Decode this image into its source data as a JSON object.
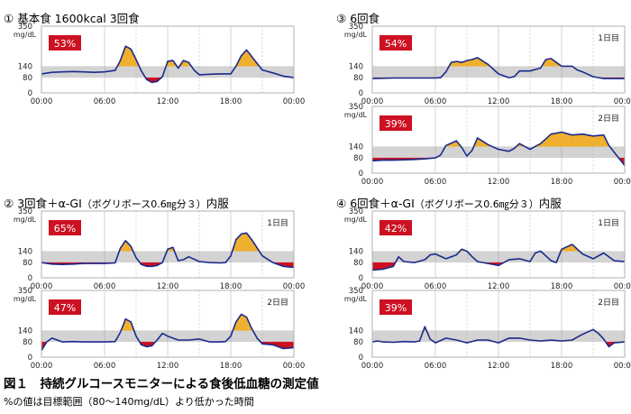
{
  "colors": {
    "line": "#1a2a8c",
    "high": "#f0b030",
    "low": "#cc1122",
    "band": "#d3d3d3",
    "badge": "#cc1122",
    "frame": "#b0b0b0",
    "vgrid": "#9a9a9a"
  },
  "sections": [
    {
      "number": "①",
      "title": "基本食 1600kcal 3回食",
      "drug": "",
      "suffix": ""
    },
    {
      "number": "③",
      "title": "6回食",
      "drug": "",
      "suffix": ""
    },
    {
      "number": "②",
      "title": "3回食＋α-GI",
      "drug": "（ボグリボース0.6㎎分３）",
      "suffix": "内服"
    },
    {
      "number": "④",
      "title": "6回食＋α-GI",
      "drug": "（ボグリボース0.6㎎分３）",
      "suffix": "内服"
    }
  ],
  "figure": {
    "title": "図１　持続グルコースモニターによる食後低血糖の測定値",
    "note": "%の値は目標範囲（80～140mg/dL）より低かった時間"
  },
  "axis": {
    "y_ticks": [
      "350",
      "140",
      "80",
      "0"
    ],
    "unit": "mg/dL",
    "x_ticks": [
      "00:00",
      "06:00",
      "12:00",
      "18:00",
      "00:00"
    ]
  },
  "chart_data": [
    {
      "type": "line",
      "section": 1,
      "day_label": "",
      "badge": "53%",
      "y_range": [
        0,
        350
      ],
      "target_range": [
        80,
        140
      ],
      "x_range_hours": [
        0,
        24
      ],
      "x": [
        0,
        1,
        2,
        3,
        4,
        5,
        6,
        7,
        7.5,
        8,
        8.5,
        9,
        9.5,
        10,
        10.5,
        11,
        11.5,
        12,
        12.5,
        13,
        13.5,
        14,
        14.5,
        15,
        16,
        17,
        18,
        18.5,
        19,
        19.5,
        20,
        21,
        22,
        23,
        24
      ],
      "y": [
        100,
        108,
        110,
        112,
        110,
        108,
        110,
        118,
        170,
        245,
        230,
        175,
        115,
        70,
        55,
        60,
        85,
        165,
        170,
        130,
        170,
        160,
        120,
        95,
        98,
        100,
        100,
        140,
        195,
        225,
        190,
        120,
        105,
        88,
        80
      ]
    },
    {
      "type": "line",
      "section": 3,
      "day_label": "1日目",
      "badge": "54%",
      "y_range": [
        0,
        350
      ],
      "target_range": [
        80,
        140
      ],
      "x_range_hours": [
        0,
        24
      ],
      "x": [
        0,
        2,
        4,
        6,
        6.5,
        7,
        7.5,
        8,
        8.5,
        9,
        9.5,
        10,
        11,
        12,
        12.5,
        13,
        13.5,
        14,
        15,
        16,
        16.5,
        17,
        17.5,
        18,
        19,
        19.5,
        20,
        21,
        22,
        23,
        24
      ],
      "y": [
        75,
        78,
        78,
        78,
        80,
        110,
        160,
        165,
        160,
        170,
        175,
        185,
        150,
        100,
        90,
        80,
        85,
        115,
        115,
        130,
        175,
        180,
        160,
        140,
        140,
        120,
        110,
        85,
        75,
        75,
        75
      ]
    },
    {
      "type": "line",
      "section": 3,
      "day_label": "2日目",
      "badge": "39%",
      "y_range": [
        0,
        350
      ],
      "target_range": [
        80,
        140
      ],
      "x_range_hours": [
        0,
        24
      ],
      "x": [
        0,
        1,
        2,
        3,
        4,
        5,
        6,
        6.5,
        7,
        8,
        8.5,
        9,
        9.5,
        10,
        11,
        12,
        13,
        13.5,
        14,
        15,
        16,
        17,
        18,
        19,
        20,
        21,
        22,
        22.5,
        23,
        24
      ],
      "y": [
        65,
        68,
        68,
        70,
        72,
        75,
        80,
        95,
        145,
        170,
        135,
        90,
        120,
        185,
        150,
        125,
        115,
        130,
        155,
        125,
        155,
        205,
        215,
        200,
        205,
        195,
        200,
        145,
        110,
        40
      ]
    },
    {
      "type": "line",
      "section": 2,
      "day_label": "1日目",
      "badge": "65%",
      "y_range": [
        0,
        350
      ],
      "target_range": [
        80,
        140
      ],
      "x_range_hours": [
        0,
        24
      ],
      "x": [
        0,
        1,
        2,
        3,
        4,
        5,
        6,
        7,
        7.5,
        8,
        8.5,
        9,
        9.5,
        10,
        10.5,
        11,
        11.5,
        12,
        12.5,
        13,
        13.5,
        14,
        15,
        16,
        17,
        17.5,
        18,
        18.5,
        19,
        19.5,
        20,
        21,
        22,
        23,
        24
      ],
      "y": [
        80,
        72,
        70,
        72,
        75,
        75,
        75,
        78,
        155,
        195,
        165,
        105,
        70,
        60,
        60,
        65,
        80,
        150,
        160,
        90,
        95,
        110,
        85,
        80,
        78,
        80,
        115,
        200,
        230,
        235,
        200,
        115,
        80,
        60,
        55
      ]
    },
    {
      "type": "line",
      "section": 2,
      "day_label": "2日目",
      "badge": "47%",
      "y_range": [
        0,
        350
      ],
      "target_range": [
        80,
        140
      ],
      "x_range_hours": [
        0,
        24
      ],
      "x": [
        0,
        0.5,
        1,
        2,
        3,
        4,
        5,
        6,
        7,
        7.5,
        8,
        8.5,
        9,
        9.5,
        10,
        10.5,
        11,
        11.5,
        12,
        13,
        14,
        15,
        16,
        17,
        17.5,
        18,
        18.5,
        19,
        19.5,
        20,
        20.5,
        21,
        22,
        23,
        24
      ],
      "y": [
        35,
        80,
        100,
        80,
        82,
        80,
        80,
        80,
        82,
        130,
        200,
        185,
        110,
        65,
        55,
        60,
        90,
        125,
        110,
        90,
        90,
        95,
        80,
        80,
        82,
        110,
        185,
        225,
        210,
        150,
        100,
        70,
        65,
        45,
        50
      ]
    },
    {
      "type": "line",
      "section": 4,
      "day_label": "1日目",
      "badge": "42%",
      "y_range": [
        0,
        350
      ],
      "target_range": [
        80,
        140
      ],
      "x_range_hours": [
        0,
        24
      ],
      "x": [
        0,
        1,
        2,
        2.5,
        3,
        4,
        5,
        5.5,
        6,
        7,
        8,
        8.5,
        9,
        9.5,
        10,
        11,
        12,
        13,
        14,
        15,
        15.5,
        16,
        16.5,
        17,
        17.5,
        18,
        19,
        20,
        21,
        22,
        23,
        24
      ],
      "y": [
        40,
        45,
        60,
        110,
        85,
        80,
        95,
        120,
        125,
        100,
        120,
        150,
        140,
        110,
        85,
        75,
        65,
        95,
        100,
        85,
        130,
        140,
        115,
        90,
        80,
        150,
        175,
        125,
        100,
        130,
        90,
        85
      ]
    },
    {
      "type": "line",
      "section": 4,
      "day_label": "2日目",
      "badge": "39%",
      "y_range": [
        0,
        350
      ],
      "target_range": [
        80,
        140
      ],
      "x_range_hours": [
        0,
        24
      ],
      "x": [
        0,
        0.5,
        1,
        2,
        3,
        4,
        4.5,
        5,
        5.5,
        6,
        7,
        8,
        9,
        10,
        11,
        12,
        13,
        14,
        15,
        16,
        17,
        18,
        19,
        20,
        21,
        21.5,
        22,
        22.5,
        23,
        24
      ],
      "y": [
        80,
        85,
        80,
        78,
        82,
        80,
        85,
        160,
        95,
        75,
        100,
        90,
        75,
        90,
        90,
        75,
        100,
        100,
        90,
        85,
        90,
        85,
        90,
        120,
        145,
        125,
        95,
        55,
        75,
        80
      ]
    }
  ]
}
